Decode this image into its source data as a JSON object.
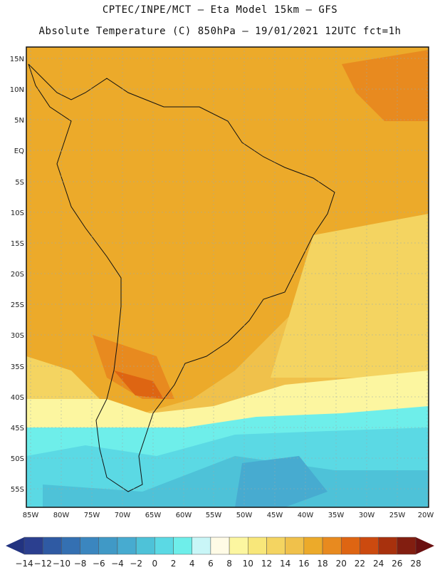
{
  "title_line1": "CPTEC/INPE/MCT –  Eta Model 15km – GFS",
  "title_line2": "Absolute Temperature (C) 850hPa – 19/01/2021 12UTC fct=1h",
  "lat_labels": [
    "15N",
    "10N",
    "5N",
    "EQ",
    "5S",
    "10S",
    "15S",
    "20S",
    "25S",
    "30S",
    "35S",
    "40S",
    "45S",
    "50S",
    "55S"
  ],
  "lon_labels": [
    "85W",
    "80W",
    "75W",
    "70W",
    "65W",
    "60W",
    "55W",
    "50W",
    "45W",
    "40W",
    "35W",
    "30W",
    "25W",
    "20W"
  ],
  "colorbar": {
    "labels": [
      "-14",
      "-12",
      "-10",
      "-8",
      "-6",
      "-4",
      "-2",
      "0",
      "2",
      "4",
      "6",
      "8",
      "10",
      "12",
      "14",
      "16",
      "18",
      "20",
      "22",
      "24",
      "26",
      "28"
    ],
    "colors": [
      "#2b3f8f",
      "#2f5aa3",
      "#3470b2",
      "#3b86bf",
      "#4099c6",
      "#47abd0",
      "#4ec2d8",
      "#5bd9e4",
      "#6eeeea",
      "#c9f6f7",
      "#fffbe6",
      "#fcf6a0",
      "#f8e77a",
      "#f4d461",
      "#f0c14b",
      "#ecaa2a",
      "#e88a1f",
      "#de6512",
      "#cc4a0f",
      "#a8310d",
      "#821e10"
    ],
    "left_arrow_color": "#223380",
    "right_arrow_color": "#6a1010"
  }
}
